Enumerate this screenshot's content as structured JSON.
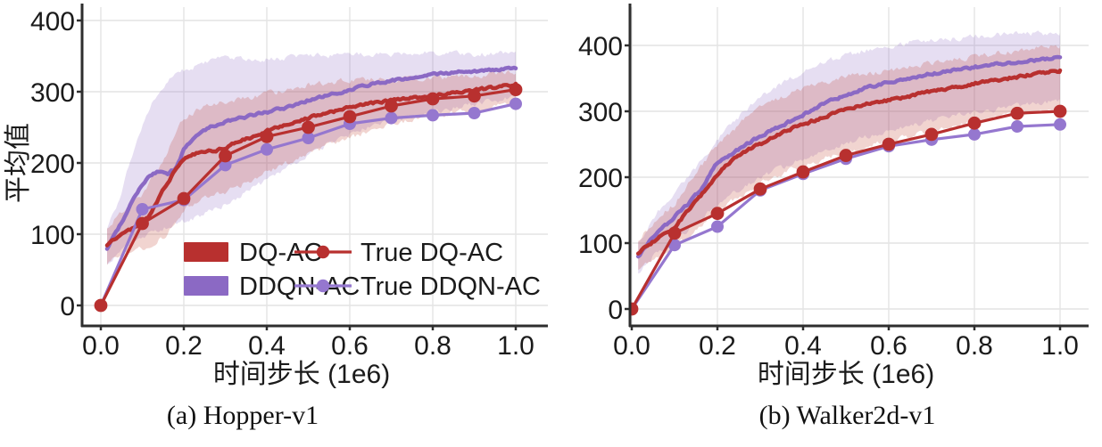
{
  "figure": {
    "background": "#ffffff",
    "captions": [
      "(a) Hopper-v1",
      "(b) Walker2d-v1"
    ]
  },
  "colors": {
    "red": "#b8302f",
    "red_marker": "#b8302f",
    "red_band": "#c0392b",
    "purple": "#8b69c4",
    "purple_marker": "#9577cf",
    "purple_band": "#8b69c4",
    "grid": "#e4e4e4",
    "axis": "#2e2e2e",
    "text": "#1b1b1b"
  },
  "chart_data": [
    {
      "type": "line",
      "title": "(a) Hopper-v1",
      "xlabel": "时间步长 (1e6)",
      "ylabel": "平均值",
      "xlim": [
        0,
        1.08
      ],
      "ylim": [
        0,
        400
      ],
      "grid": true,
      "legend_position": "lower-center-inside",
      "xticks": [
        {
          "v": 0.0,
          "label": "0.0"
        },
        {
          "v": 0.2,
          "label": "0.2"
        },
        {
          "v": 0.4,
          "label": "0.4"
        },
        {
          "v": 0.6,
          "label": "0.6"
        },
        {
          "v": 0.8,
          "label": "0.8"
        },
        {
          "v": 1.0,
          "label": "1.0"
        }
      ],
      "yticks": [
        {
          "v": 0,
          "label": "0"
        },
        {
          "v": 100,
          "label": "100"
        },
        {
          "v": 200,
          "label": "200"
        },
        {
          "v": 300,
          "label": "300"
        },
        {
          "v": 400,
          "label": "400"
        }
      ],
      "legend": [
        "DQ-AC",
        "DDQN-AC",
        "True DQ-AC",
        "True DDQN-AC"
      ],
      "series": [
        {
          "name": "DQ-AC",
          "style": "band+line",
          "color_key": "red",
          "line": [
            [
              0.015,
              85
            ],
            [
              0.05,
              100
            ],
            [
              0.08,
              108
            ],
            [
              0.1,
              115
            ],
            [
              0.12,
              128
            ],
            [
              0.14,
              150
            ],
            [
              0.16,
              172
            ],
            [
              0.18,
              190
            ],
            [
              0.2,
              205
            ],
            [
              0.22,
              212
            ],
            [
              0.25,
              215
            ],
            [
              0.28,
              218
            ],
            [
              0.3,
              222
            ],
            [
              0.33,
              230
            ],
            [
              0.36,
              235
            ],
            [
              0.4,
              245
            ],
            [
              0.44,
              252
            ],
            [
              0.48,
              260
            ],
            [
              0.52,
              266
            ],
            [
              0.56,
              272
            ],
            [
              0.6,
              278
            ],
            [
              0.65,
              284
            ],
            [
              0.7,
              288
            ],
            [
              0.75,
              291
            ],
            [
              0.8,
              295
            ],
            [
              0.85,
              298
            ],
            [
              0.9,
              302
            ],
            [
              0.95,
              306
            ],
            [
              1.0,
              311
            ]
          ],
          "band": [
            [
              0.015,
              60,
              110
            ],
            [
              0.05,
              70,
              130
            ],
            [
              0.1,
              80,
              155
            ],
            [
              0.15,
              95,
              205
            ],
            [
              0.2,
              135,
              262
            ],
            [
              0.25,
              152,
              280
            ],
            [
              0.3,
              160,
              285
            ],
            [
              0.35,
              172,
              290
            ],
            [
              0.4,
              188,
              297
            ],
            [
              0.45,
              200,
              303
            ],
            [
              0.5,
              213,
              310
            ],
            [
              0.55,
              225,
              313
            ],
            [
              0.6,
              235,
              316
            ],
            [
              0.65,
              245,
              317
            ],
            [
              0.7,
              254,
              318
            ],
            [
              0.75,
              260,
              318
            ],
            [
              0.8,
              264,
              319
            ],
            [
              0.85,
              270,
              320
            ],
            [
              0.9,
              273,
              322
            ],
            [
              0.95,
              278,
              324
            ],
            [
              1.0,
              283,
              327
            ]
          ]
        },
        {
          "name": "DDQN-AC",
          "style": "band+line",
          "color_key": "purple",
          "line": [
            [
              0.015,
              80
            ],
            [
              0.04,
              105
            ],
            [
              0.06,
              128
            ],
            [
              0.08,
              150
            ],
            [
              0.1,
              170
            ],
            [
              0.12,
              183
            ],
            [
              0.14,
              188
            ],
            [
              0.16,
              185
            ],
            [
              0.18,
              192
            ],
            [
              0.2,
              218
            ],
            [
              0.23,
              240
            ],
            [
              0.26,
              250
            ],
            [
              0.3,
              257
            ],
            [
              0.34,
              263
            ],
            [
              0.38,
              269
            ],
            [
              0.42,
              274
            ],
            [
              0.46,
              280
            ],
            [
              0.5,
              288
            ],
            [
              0.55,
              295
            ],
            [
              0.6,
              303
            ],
            [
              0.65,
              310
            ],
            [
              0.7,
              316
            ],
            [
              0.75,
              320
            ],
            [
              0.8,
              324
            ],
            [
              0.85,
              327
            ],
            [
              0.9,
              329
            ],
            [
              0.95,
              331
            ],
            [
              1.0,
              333
            ]
          ],
          "band": [
            [
              0.015,
              55,
              105
            ],
            [
              0.05,
              75,
              160
            ],
            [
              0.08,
              90,
              220
            ],
            [
              0.1,
              95,
              255
            ],
            [
              0.13,
              105,
              290
            ],
            [
              0.16,
              110,
              315
            ],
            [
              0.2,
              118,
              330
            ],
            [
              0.25,
              128,
              342
            ],
            [
              0.3,
              142,
              347
            ],
            [
              0.35,
              160,
              347
            ],
            [
              0.4,
              175,
              346
            ],
            [
              0.45,
              195,
              348
            ],
            [
              0.5,
              212,
              350
            ],
            [
              0.55,
              228,
              351
            ],
            [
              0.6,
              240,
              352
            ],
            [
              0.65,
              250,
              352
            ],
            [
              0.7,
              258,
              353
            ],
            [
              0.75,
              266,
              353
            ],
            [
              0.8,
              272,
              354
            ],
            [
              0.85,
              278,
              354
            ],
            [
              0.9,
              283,
              353
            ],
            [
              0.95,
              288,
              354
            ],
            [
              1.0,
              293,
              356
            ]
          ]
        },
        {
          "name": "True DQ-AC",
          "style": "line+markers",
          "color_key": "red_marker",
          "x": [
            0,
            0.1,
            0.2,
            0.3,
            0.4,
            0.5,
            0.6,
            0.7,
            0.8,
            0.9,
            1.0
          ],
          "y": [
            0,
            115,
            150,
            210,
            237,
            250,
            265,
            280,
            290,
            294,
            303
          ]
        },
        {
          "name": "True DDQN-AC",
          "style": "line+markers",
          "color_key": "purple_marker",
          "x": [
            0,
            0.1,
            0.2,
            0.3,
            0.4,
            0.5,
            0.6,
            0.7,
            0.8,
            0.9,
            1.0
          ],
          "y": [
            0,
            135,
            148,
            197,
            219,
            235,
            255,
            263,
            267,
            270,
            283
          ]
        }
      ]
    },
    {
      "type": "line",
      "title": "(b) Walker2d-v1",
      "xlabel": "时间步长 (1e6)",
      "ylabel": "",
      "xlim": [
        0,
        1.07
      ],
      "ylim": [
        0,
        430
      ],
      "grid": true,
      "legend_position": "none",
      "xticks": [
        {
          "v": 0.0,
          "label": "0.0"
        },
        {
          "v": 0.2,
          "label": "0.2"
        },
        {
          "v": 0.4,
          "label": "0.4"
        },
        {
          "v": 0.6,
          "label": "0.6"
        },
        {
          "v": 0.8,
          "label": "0.8"
        },
        {
          "v": 1.0,
          "label": "1.0"
        }
      ],
      "yticks": [
        {
          "v": 0,
          "label": "0"
        },
        {
          "v": 100,
          "label": "100"
        },
        {
          "v": 200,
          "label": "200"
        },
        {
          "v": 300,
          "label": "300"
        },
        {
          "v": 400,
          "label": "400"
        }
      ],
      "legend": [],
      "series": [
        {
          "name": "DQ-AC",
          "style": "band+line",
          "color_key": "red",
          "line": [
            [
              0.015,
              85
            ],
            [
              0.05,
              102
            ],
            [
              0.08,
              115
            ],
            [
              0.1,
              125
            ],
            [
              0.13,
              148
            ],
            [
              0.16,
              170
            ],
            [
              0.2,
              205
            ],
            [
              0.24,
              228
            ],
            [
              0.28,
              245
            ],
            [
              0.31,
              252
            ],
            [
              0.35,
              268
            ],
            [
              0.4,
              280
            ],
            [
              0.45,
              292
            ],
            [
              0.5,
              303
            ],
            [
              0.55,
              311
            ],
            [
              0.6,
              317
            ],
            [
              0.65,
              323
            ],
            [
              0.7,
              330
            ],
            [
              0.75,
              336
            ],
            [
              0.8,
              342
            ],
            [
              0.85,
              347
            ],
            [
              0.9,
              352
            ],
            [
              0.95,
              357
            ],
            [
              1.0,
              362
            ]
          ],
          "band": [
            [
              0.015,
              60,
              105
            ],
            [
              0.05,
              75,
              130
            ],
            [
              0.1,
              95,
              160
            ],
            [
              0.15,
              120,
              205
            ],
            [
              0.2,
              150,
              250
            ],
            [
              0.25,
              170,
              280
            ],
            [
              0.3,
              190,
              305
            ],
            [
              0.35,
              205,
              322
            ],
            [
              0.4,
              218,
              335
            ],
            [
              0.45,
              228,
              345
            ],
            [
              0.5,
              238,
              352
            ],
            [
              0.55,
              247,
              358
            ],
            [
              0.6,
              255,
              363
            ],
            [
              0.65,
              262,
              368
            ],
            [
              0.7,
              270,
              373
            ],
            [
              0.75,
              277,
              378
            ],
            [
              0.8,
              284,
              383
            ],
            [
              0.85,
              290,
              388
            ],
            [
              0.9,
              295,
              392
            ],
            [
              0.95,
              300,
              396
            ],
            [
              1.0,
              305,
              400
            ]
          ]
        },
        {
          "name": "DDQN-AC",
          "style": "band+line",
          "color_key": "purple",
          "line": [
            [
              0.015,
              80
            ],
            [
              0.05,
              110
            ],
            [
              0.08,
              128
            ],
            [
              0.1,
              140
            ],
            [
              0.13,
              158
            ],
            [
              0.16,
              180
            ],
            [
              0.2,
              222
            ],
            [
              0.24,
              238
            ],
            [
              0.28,
              255
            ],
            [
              0.31,
              266
            ],
            [
              0.35,
              278
            ],
            [
              0.4,
              295
            ],
            [
              0.45,
              312
            ],
            [
              0.5,
              325
            ],
            [
              0.55,
              336
            ],
            [
              0.6,
              344
            ],
            [
              0.65,
              351
            ],
            [
              0.7,
              357
            ],
            [
              0.75,
              362
            ],
            [
              0.8,
              367
            ],
            [
              0.85,
              371
            ],
            [
              0.9,
              374
            ],
            [
              0.95,
              378
            ],
            [
              1.0,
              382
            ]
          ],
          "band": [
            [
              0.015,
              55,
              100
            ],
            [
              0.05,
              80,
              140
            ],
            [
              0.1,
              105,
              175
            ],
            [
              0.15,
              130,
              215
            ],
            [
              0.2,
              160,
              258
            ],
            [
              0.25,
              180,
              292
            ],
            [
              0.3,
              200,
              320
            ],
            [
              0.35,
              215,
              342
            ],
            [
              0.4,
              228,
              360
            ],
            [
              0.45,
              240,
              374
            ],
            [
              0.5,
              252,
              385
            ],
            [
              0.55,
              262,
              393
            ],
            [
              0.6,
              270,
              399
            ],
            [
              0.65,
              278,
              404
            ],
            [
              0.7,
              285,
              408
            ],
            [
              0.75,
              292,
              411
            ],
            [
              0.8,
              298,
              414
            ],
            [
              0.85,
              303,
              416
            ],
            [
              0.9,
              308,
              417
            ],
            [
              0.95,
              312,
              418
            ],
            [
              1.0,
              316,
              419
            ]
          ]
        },
        {
          "name": "True DQ-AC",
          "style": "line+markers",
          "color_key": "red_marker",
          "x": [
            0,
            0.1,
            0.2,
            0.3,
            0.4,
            0.5,
            0.6,
            0.7,
            0.8,
            0.9,
            1.0
          ],
          "y": [
            0,
            115,
            145,
            182,
            208,
            233,
            250,
            265,
            282,
            297,
            300
          ]
        },
        {
          "name": "True DDQN-AC",
          "style": "line+markers",
          "color_key": "purple_marker",
          "x": [
            0,
            0.1,
            0.2,
            0.3,
            0.4,
            0.5,
            0.6,
            0.7,
            0.8,
            0.9,
            1.0
          ],
          "y": [
            0,
            97,
            125,
            180,
            205,
            228,
            247,
            257,
            265,
            277,
            280
          ]
        }
      ]
    }
  ]
}
